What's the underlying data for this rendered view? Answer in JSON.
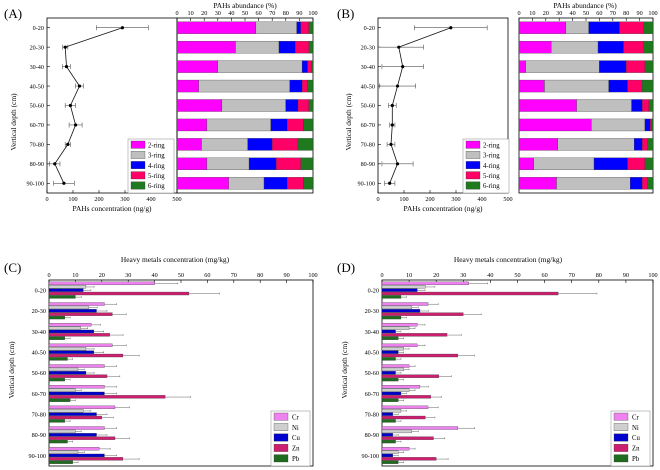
{
  "depths": [
    "0-20",
    "20-30",
    "30-40",
    "40-50",
    "50-60",
    "60-70",
    "70-80",
    "80-90",
    "90-100"
  ],
  "colors": {
    "2-ring": "#ff00ff",
    "3-ring": "#bfbfbf",
    "4-ring": "#0000ff",
    "5-ring": "#ff0066",
    "6-ring": "#1f7a1f",
    "Cr": "#ee82ee",
    "Ni": "#cfcfcf",
    "Cu": "#0000cc",
    "Zn": "#cc1f6f",
    "Pb": "#1f6b1f"
  },
  "chart_data": [
    {
      "panel": "(A)",
      "type": "line",
      "xlabel": "PAHs concentration  (ng/g)",
      "ylabel": "Vertical depth (cm)",
      "xlim": [
        0,
        500
      ],
      "xticks": [
        "0",
        "100",
        "200",
        "300",
        "400",
        "500"
      ],
      "categories": [
        "0-20",
        "20-30",
        "30-40",
        "40-50",
        "50-60",
        "60-70",
        "70-80",
        "80-90",
        "90-100"
      ],
      "values": [
        290,
        70,
        75,
        125,
        90,
        110,
        80,
        30,
        65
      ],
      "errors": [
        100,
        10,
        15,
        15,
        20,
        25,
        10,
        20,
        40
      ]
    },
    {
      "panel": "(A)",
      "type": "bar",
      "stacked": true,
      "title": "PAHs abundance (%)",
      "xlim": [
        0,
        100
      ],
      "xticks": [
        "0",
        "10",
        "20",
        "30",
        "40",
        "50",
        "60",
        "70",
        "80",
        "90",
        "100"
      ],
      "categories": [
        "0-20",
        "20-30",
        "30-40",
        "40-50",
        "50-60",
        "60-70",
        "70-80",
        "80-90",
        "90-100"
      ],
      "series": [
        {
          "name": "2-ring",
          "values": [
            58,
            43,
            30,
            16,
            33,
            22,
            18,
            22,
            38
          ]
        },
        {
          "name": "3-ring",
          "values": [
            30,
            32,
            62,
            67,
            47,
            47,
            34,
            31,
            26
          ]
        },
        {
          "name": "4-ring",
          "values": [
            3,
            12,
            4,
            9,
            9,
            12,
            18,
            20,
            17
          ]
        },
        {
          "name": "5-ring",
          "values": [
            6,
            10,
            3,
            4,
            8,
            12,
            19,
            18,
            12
          ]
        },
        {
          "name": "6-ring",
          "values": [
            3,
            3,
            1,
            4,
            3,
            7,
            11,
            9,
            7
          ]
        }
      ]
    },
    {
      "panel": "(B)",
      "type": "line",
      "xlabel": "PAHs concentration  (ng/g)",
      "ylabel": "Vertical depth (cm)",
      "xlim": [
        0,
        500
      ],
      "xticks": [
        "0",
        "100",
        "200",
        "300",
        "400",
        "500"
      ],
      "categories": [
        "0-20",
        "20-30",
        "30-40",
        "40-50",
        "50-60",
        "60-70",
        "70-80",
        "80-90",
        "90-100"
      ],
      "values": [
        280,
        80,
        95,
        75,
        55,
        55,
        50,
        75,
        45
      ],
      "errors": [
        140,
        95,
        80,
        70,
        15,
        10,
        15,
        60,
        20
      ]
    },
    {
      "panel": "(B)",
      "type": "bar",
      "stacked": true,
      "title": "PAHs abundance (%)",
      "xlim": [
        0,
        100
      ],
      "xticks": [
        "0",
        "10",
        "20",
        "30",
        "40",
        "50",
        "60",
        "70",
        "80",
        "90",
        "100"
      ],
      "categories": [
        "0-20",
        "20-30",
        "30-40",
        "40-50",
        "50-60",
        "60-70",
        "70-80",
        "80-90",
        "90-100"
      ],
      "series": [
        {
          "name": "2-ring",
          "values": [
            35,
            24,
            5,
            19,
            43,
            54,
            29,
            11,
            28
          ]
        },
        {
          "name": "3-ring",
          "values": [
            17,
            35,
            55,
            48,
            41,
            40,
            57,
            45,
            55
          ]
        },
        {
          "name": "4-ring",
          "values": [
            23,
            19,
            20,
            14,
            8,
            4,
            6,
            25,
            9
          ]
        },
        {
          "name": "5-ring",
          "values": [
            18,
            15,
            14,
            11,
            5,
            1,
            4,
            13,
            4
          ]
        },
        {
          "name": "6-ring",
          "values": [
            7,
            7,
            6,
            8,
            3,
            1,
            4,
            6,
            4
          ]
        }
      ]
    },
    {
      "panel": "(C)",
      "type": "bar",
      "title": "Heavy metals concentration (mg/kg)",
      "ylabel": "Vertical depth (cm)",
      "xlim": [
        0,
        100
      ],
      "xticks": [
        "0",
        "10",
        "20",
        "30",
        "40",
        "50",
        "60",
        "70",
        "80",
        "90",
        "100"
      ],
      "categories": [
        "0-20",
        "20-30",
        "30-40",
        "40-50",
        "50-60",
        "60-70",
        "70-80",
        "80-90",
        "90-100"
      ],
      "series": [
        {
          "name": "Cr",
          "values": [
            40,
            21,
            16,
            24,
            21,
            21,
            25,
            21,
            19
          ]
        },
        {
          "name": "Ni",
          "values": [
            14,
            15,
            12,
            14,
            11,
            10,
            13,
            10,
            11
          ]
        },
        {
          "name": "Cu",
          "values": [
            13,
            18,
            17,
            17,
            14,
            21,
            18,
            18,
            21
          ]
        },
        {
          "name": "Zn",
          "values": [
            53,
            24,
            23,
            28,
            22,
            44,
            20,
            25,
            28
          ]
        },
        {
          "name": "Pb",
          "values": [
            10,
            6,
            6,
            7,
            6,
            8,
            6,
            7,
            9
          ]
        }
      ]
    },
    {
      "panel": "(D)",
      "type": "bar",
      "title": "Heavy metals concentration (mg/kg)",
      "ylabel": "Vertical depth (cm)",
      "xlim": [
        0,
        100
      ],
      "xticks": [
        "0",
        "10",
        "20",
        "30",
        "40",
        "50",
        "60",
        "70",
        "80",
        "90",
        "100"
      ],
      "categories": [
        "0-20",
        "20-30",
        "30-40",
        "40-50",
        "50-60",
        "60-70",
        "70-80",
        "80-90",
        "90-100"
      ],
      "series": [
        {
          "name": "Cr",
          "values": [
            32,
            17,
            13,
            13,
            10,
            14,
            17,
            28,
            10
          ]
        },
        {
          "name": "Ni",
          "values": [
            16,
            11,
            10,
            8,
            8,
            10,
            7,
            11,
            6
          ]
        },
        {
          "name": "Cu",
          "values": [
            13,
            14,
            5,
            6,
            5,
            7,
            4,
            4,
            4
          ]
        },
        {
          "name": "Zn",
          "values": [
            65,
            30,
            24,
            28,
            21,
            18,
            16,
            19,
            20
          ]
        },
        {
          "name": "Pb",
          "values": [
            7,
            7,
            6,
            5,
            6,
            6,
            5,
            5,
            6
          ]
        }
      ]
    }
  ]
}
